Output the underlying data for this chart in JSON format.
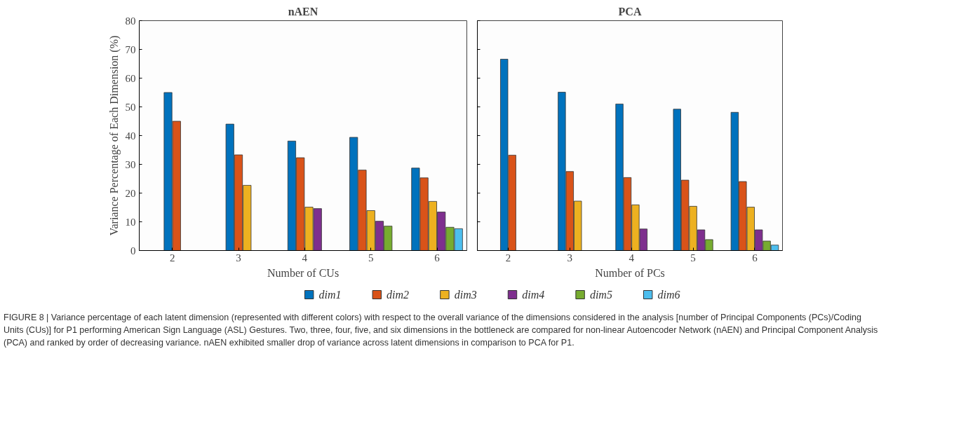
{
  "chart_data": [
    {
      "type": "bar",
      "title": "nAEN",
      "xlabel": "Number of CUs",
      "ylabel": "Variance Percentage of Each Dimension (%)",
      "categories": [
        "2",
        "3",
        "4",
        "5",
        "6"
      ],
      "ylim": [
        0,
        80
      ],
      "yticks": [
        0,
        10,
        20,
        30,
        40,
        50,
        60,
        70,
        80
      ],
      "grid": false,
      "legend": "bottom",
      "series": [
        {
          "name": "dim1",
          "color": "#0072bd",
          "values": [
            55,
            44,
            38.1,
            39.4,
            28.7
          ]
        },
        {
          "name": "dim2",
          "color": "#d95319",
          "values": [
            45,
            33.3,
            32.3,
            28,
            25.3
          ]
        },
        {
          "name": "dim3",
          "color": "#edb120",
          "values": [
            null,
            22.7,
            15.1,
            13.9,
            17.1
          ]
        },
        {
          "name": "dim4",
          "color": "#7e2f8e",
          "values": [
            null,
            null,
            14.6,
            10.2,
            13.4
          ]
        },
        {
          "name": "dim5",
          "color": "#77ac30",
          "values": [
            null,
            null,
            null,
            8.5,
            8.1
          ]
        },
        {
          "name": "dim6",
          "color": "#4dbeee",
          "values": [
            null,
            null,
            null,
            null,
            7.6
          ]
        }
      ],
      "annotations": [
        "FIGURE 8 | Variance percentage of each latent dimension (represented with different colors) with respect to the overall variance of the dimensions considered in the analysis [number of Principal Components (PCs)/Coding Units (CUs)] for P1 performing American Sign Language (ASL) Gestures. Two, three, four, five, and six dimensions in the bottleneck are compared for non-linear Autoencoder Network (nAEN) and Principal Component Analysis (PCA) and ranked by order of decreasing variance. nAEN exhibited smaller drop of variance across latent dimensions in comparison to PCA for P1."
      ]
    },
    {
      "type": "bar",
      "title": "PCA",
      "xlabel": "Number of PCs",
      "categories": [
        "2",
        "3",
        "4",
        "5",
        "6"
      ],
      "ylim": [
        0,
        80
      ],
      "yticks": [
        0,
        10,
        20,
        30,
        40,
        50,
        60,
        70,
        80
      ],
      "grid": false,
      "tick_labels": "x",
      "series": [
        {
          "color": "#0072bd",
          "values": [
            66.6,
            55.1,
            51,
            49.2,
            48.1
          ]
        },
        {
          "color": "#d95319",
          "values": [
            33.2,
            27.5,
            25.4,
            24.5,
            24
          ]
        },
        {
          "color": "#edb120",
          "values": [
            null,
            17.2,
            15.9,
            15.4,
            15.1
          ]
        },
        {
          "color": "#7e2f8e",
          "values": [
            null,
            null,
            7.5,
            7.2,
            7.2
          ]
        },
        {
          "color": "#77ac30",
          "values": [
            null,
            null,
            null,
            3.8,
            3.3
          ]
        },
        {
          "color": "#4dbeee",
          "values": [
            null,
            null,
            null,
            null,
            1.9
          ]
        }
      ]
    }
  ]
}
